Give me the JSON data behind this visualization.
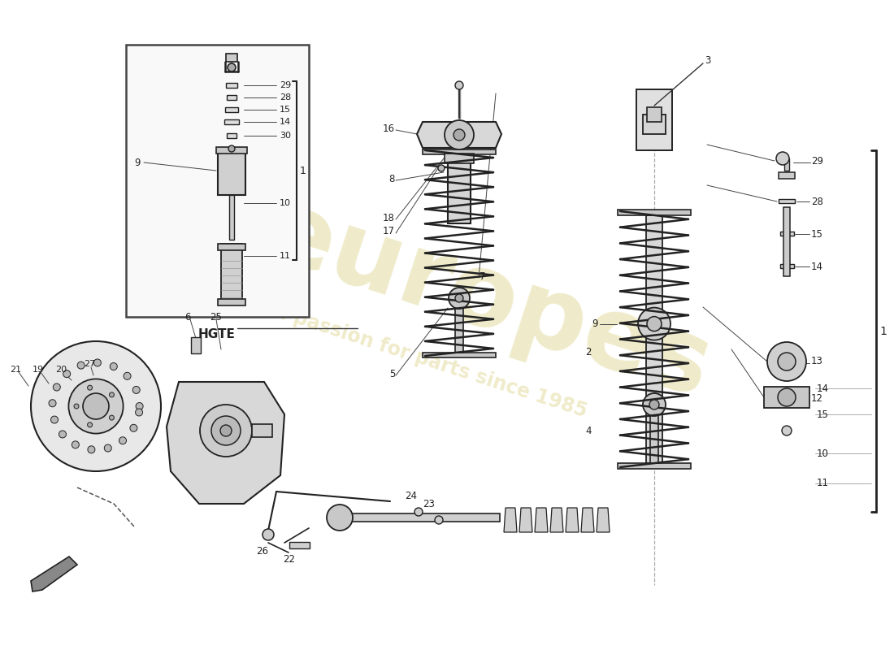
{
  "bg": "#ffffff",
  "lc": "#222222",
  "lc_thin": "#555555",
  "wm1": "europes",
  "wm2": "a passion for parts since 1985",
  "wm_color": "#c8b840",
  "wm_alpha": 0.28,
  "figsize": [
    11.0,
    8.0
  ],
  "dpi": 100,
  "xlim": [
    0,
    1100
  ],
  "ylim": [
    0,
    800
  ]
}
